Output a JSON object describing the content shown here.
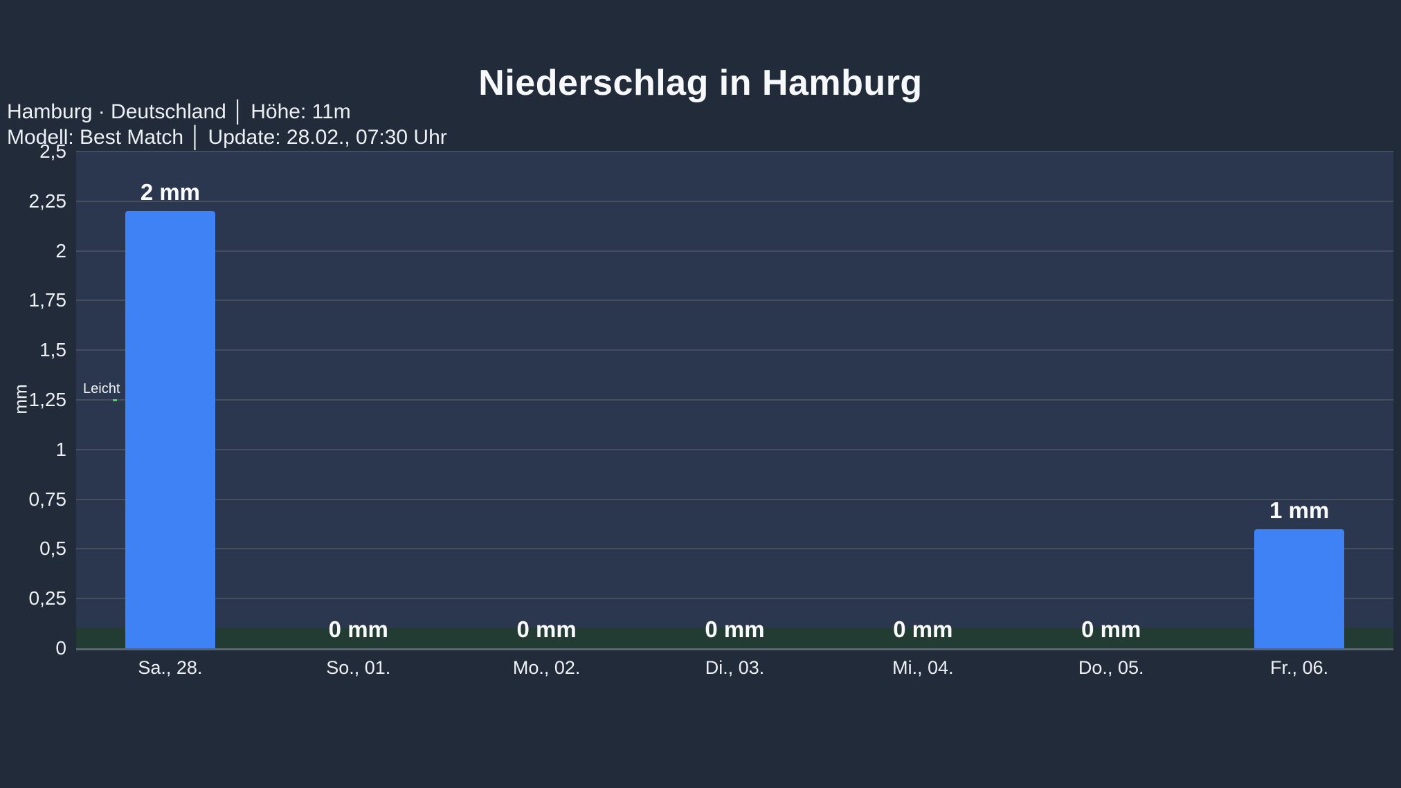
{
  "header": {
    "title": "Niederschlag in Hamburg",
    "location_line": "Hamburg · Deutschland │ Höhe: 11m",
    "model_line": "Modell: Best Match │ Update: 28.02., 07:30 Uhr"
  },
  "chart_data": {
    "type": "bar",
    "title": "Niederschlag in Hamburg",
    "categories": [
      "Sa., 28.",
      "So., 01.",
      "Mo., 02.",
      "Di., 03.",
      "Mi., 04.",
      "Do., 05.",
      "Fr., 06."
    ],
    "values": [
      2.2,
      0,
      0,
      0,
      0,
      0,
      0.6
    ],
    "bar_labels": [
      "2 mm",
      "0 mm",
      "0 mm",
      "0 mm",
      "0 mm",
      "0 mm",
      "1 mm"
    ],
    "unit": "mm",
    "ylabel": "mm",
    "xlabel": "",
    "ylim": [
      0,
      2.5
    ],
    "yticks": [
      {
        "value": 0,
        "label": "0"
      },
      {
        "value": 0.25,
        "label": "0,25"
      },
      {
        "value": 0.5,
        "label": "0,5"
      },
      {
        "value": 0.75,
        "label": "0,75"
      },
      {
        "value": 1,
        "label": "1"
      },
      {
        "value": 1.25,
        "label": "1,25"
      },
      {
        "value": 1.5,
        "label": "1,5"
      },
      {
        "value": 1.75,
        "label": "1,75"
      },
      {
        "value": 2,
        "label": "2"
      },
      {
        "value": 2.25,
        "label": "2,25"
      },
      {
        "value": 2.5,
        "label": "2,5"
      }
    ],
    "grid": true,
    "legend": false,
    "annotations": [
      {
        "label": "Leicht",
        "value": 1.25
      }
    ],
    "threshold_band": {
      "from": 0,
      "to": 0.1
    }
  },
  "colors": {
    "page_bg": "#212b3a",
    "plot_bg": "#2a374e",
    "bar": "#3e82f6",
    "gridline": "#4a5463",
    "baseline": "#5c6573",
    "band": "#223c33",
    "title_text": "#f6f8fa",
    "axis_text": "#eef1f4",
    "annotation_dash": "#42d95e"
  }
}
